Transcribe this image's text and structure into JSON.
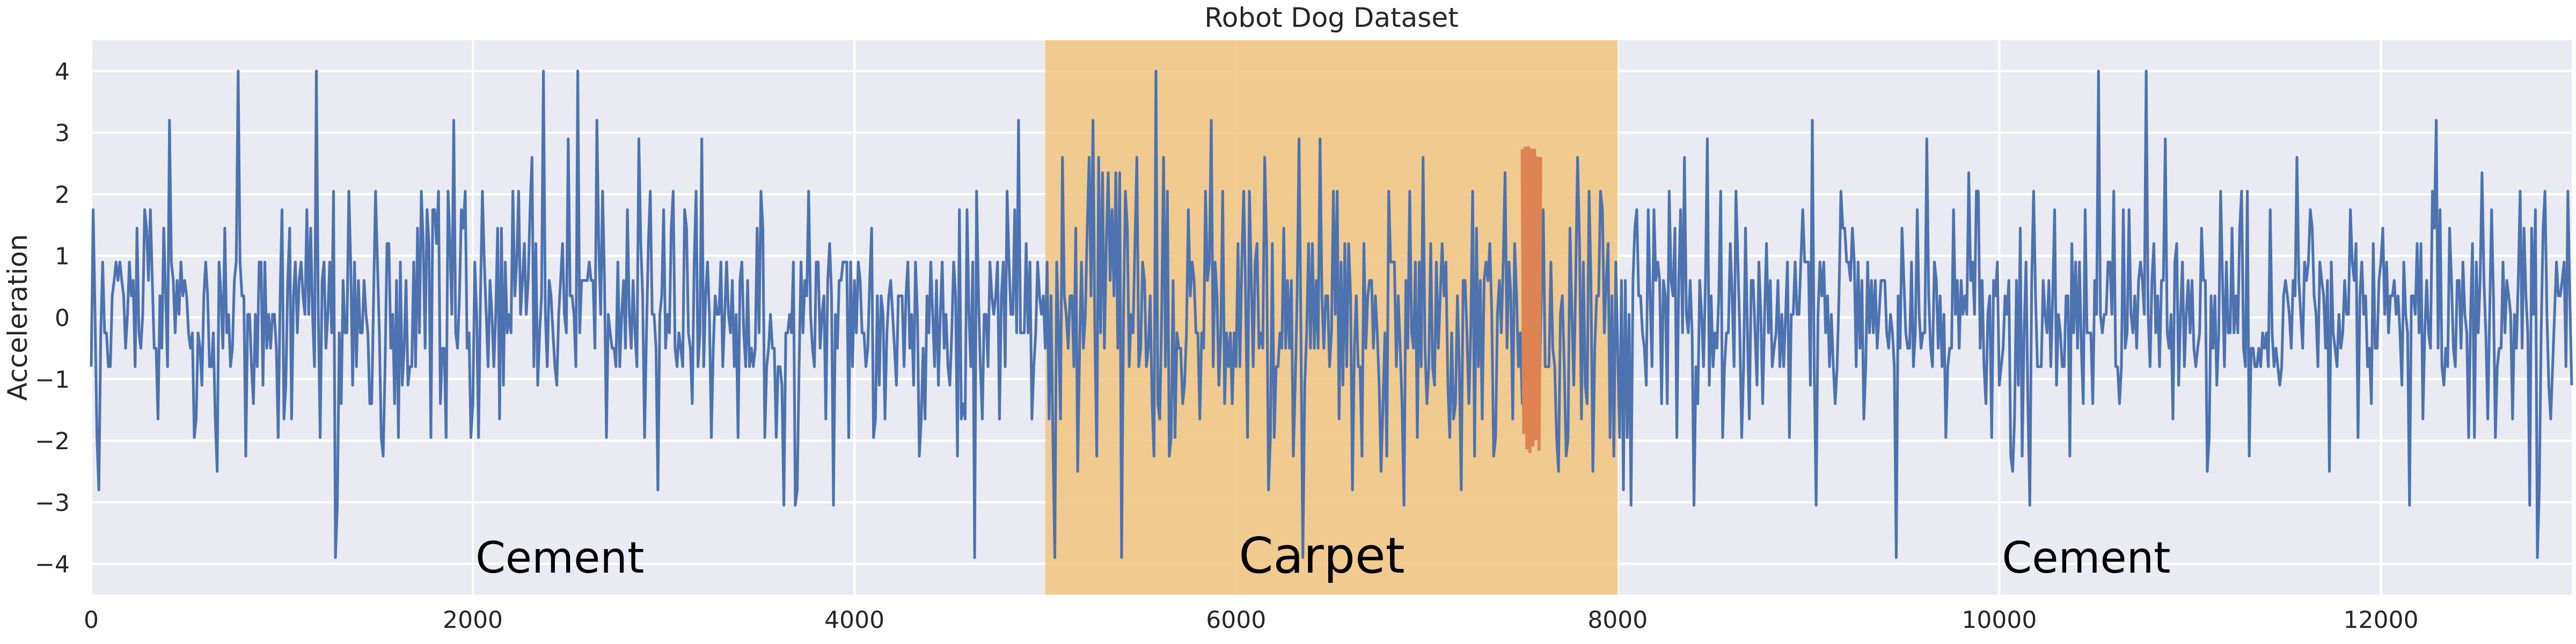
{
  "chart_data": {
    "type": "line",
    "title": "Robot Dog Dataset",
    "xlabel": "",
    "ylabel": "Acceleration",
    "xlim": [
      0,
      13000
    ],
    "ylim": [
      -4.5,
      4.5
    ],
    "x_ticks": [
      0,
      2000,
      4000,
      6000,
      8000,
      10000,
      12000
    ],
    "y_ticks": [
      -4,
      -3,
      -2,
      -1,
      0,
      1,
      2,
      3,
      4
    ],
    "grid": true,
    "background": "#eaeaf2",
    "series": [
      {
        "color": "#4c72b0",
        "x_start": 0,
        "x_end": 13000,
        "levels": [
          -3.9,
          -3.65,
          -3.05,
          -2.8,
          -2.5,
          -2.25,
          -1.95,
          -1.65,
          -1.4,
          -1.1,
          -0.8,
          -0.5,
          -0.25,
          0.05,
          0.35,
          0.6,
          0.9,
          1.2,
          1.45,
          1.75,
          2.05,
          2.35,
          2.6,
          2.9,
          3.2,
          3.45,
          3.75,
          4.0
        ],
        "value_range": [
          -3.9,
          4.0
        ]
      },
      {
        "color": "#dd8452",
        "x_start": 7500,
        "x_end": 7600,
        "value_range": [
          -2.25,
          2.9
        ]
      }
    ],
    "shaded_regions": [
      {
        "x_start": 5000,
        "x_end": 8000,
        "color": "#f2c47e"
      }
    ],
    "annotations": [
      {
        "text": "Cement",
        "x": 2000,
        "y": -3.9,
        "size": "large"
      },
      {
        "text": "Carpet",
        "x": 6000,
        "y": -3.9,
        "size": "larger"
      },
      {
        "text": "Cement",
        "x": 10000,
        "y": -3.9,
        "size": "large"
      }
    ]
  }
}
